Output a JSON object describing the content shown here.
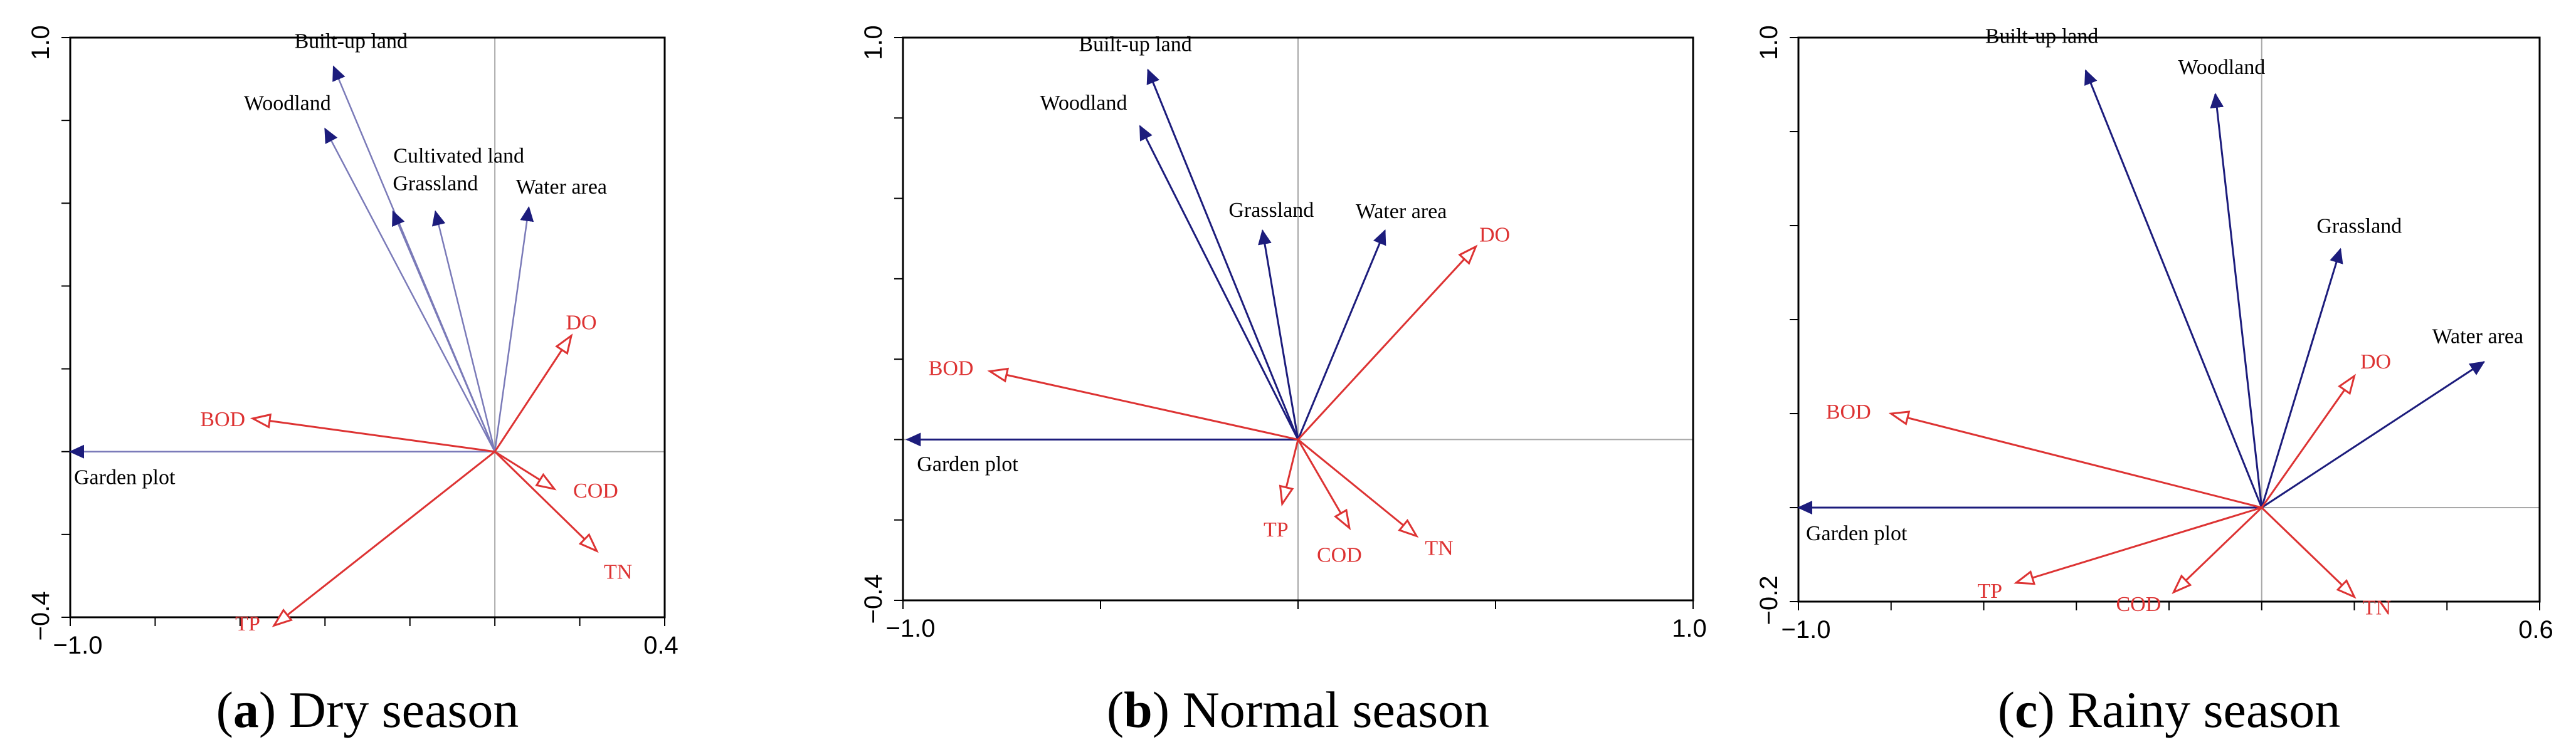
{
  "colors": {
    "landuse": "#1c1c7c",
    "landuse_light": "#7a7ab8",
    "water_quality": "#dd3333"
  },
  "chart_data": [
    {
      "type": "biplot",
      "panel": "a",
      "caption_letter": "a",
      "caption_text": "Dry season",
      "xlim": [
        -1.0,
        0.4
      ],
      "ylim": [
        -0.4,
        1.0
      ],
      "x_tick_labels": [
        "−1.0",
        "0.4"
      ],
      "y_tick_labels": [
        "−0.4",
        "1.0"
      ],
      "landuse_style": "light",
      "vectors": [
        {
          "name": "Built-up land",
          "group": "landuse",
          "x": -0.38,
          "y": 0.93
        },
        {
          "name": "Woodland",
          "group": "landuse",
          "x": -0.4,
          "y": 0.78
        },
        {
          "name": "Cultivated land",
          "group": "landuse",
          "x": -0.24,
          "y": 0.58
        },
        {
          "name": "Grassland",
          "group": "landuse",
          "x": -0.14,
          "y": 0.58
        },
        {
          "name": "Water area",
          "group": "landuse",
          "x": 0.08,
          "y": 0.59
        },
        {
          "name": "Garden plot",
          "group": "landuse",
          "x": -1.0,
          "y": 0.0
        },
        {
          "name": "DO",
          "group": "water_quality",
          "x": 0.18,
          "y": 0.28
        },
        {
          "name": "BOD",
          "group": "water_quality",
          "x": -0.57,
          "y": 0.08
        },
        {
          "name": "COD",
          "group": "water_quality",
          "x": 0.14,
          "y": -0.09
        },
        {
          "name": "TN",
          "group": "water_quality",
          "x": 0.24,
          "y": -0.24
        },
        {
          "name": "TP",
          "group": "water_quality",
          "x": -0.52,
          "y": -0.42
        }
      ]
    },
    {
      "type": "biplot",
      "panel": "b",
      "caption_letter": "b",
      "caption_text": "Normal season",
      "xlim": [
        -1.0,
        1.0
      ],
      "ylim": [
        -0.4,
        1.0
      ],
      "x_tick_labels": [
        "−1.0",
        "1.0"
      ],
      "y_tick_labels": [
        "−0.4",
        "1.0"
      ],
      "landuse_style": "dark",
      "vectors": [
        {
          "name": "Built-up land",
          "group": "landuse",
          "x": -0.38,
          "y": 0.92
        },
        {
          "name": "Woodland",
          "group": "landuse",
          "x": -0.4,
          "y": 0.78
        },
        {
          "name": "Grassland",
          "group": "landuse",
          "x": -0.09,
          "y": 0.52
        },
        {
          "name": "Water area",
          "group": "landuse",
          "x": 0.22,
          "y": 0.52
        },
        {
          "name": "Garden plot",
          "group": "landuse",
          "x": -0.99,
          "y": 0.0
        },
        {
          "name": "DO",
          "group": "water_quality",
          "x": 0.45,
          "y": 0.48
        },
        {
          "name": "BOD",
          "group": "water_quality",
          "x": -0.78,
          "y": 0.17
        },
        {
          "name": "COD",
          "group": "water_quality",
          "x": 0.13,
          "y": -0.22
        },
        {
          "name": "TN",
          "group": "water_quality",
          "x": 0.3,
          "y": -0.24
        },
        {
          "name": "TP",
          "group": "water_quality",
          "x": -0.04,
          "y": -0.16
        }
      ]
    },
    {
      "type": "biplot",
      "panel": "c",
      "caption_letter": "c",
      "caption_text": "Rainy season",
      "xlim": [
        -1.0,
        0.6
      ],
      "ylim": [
        -0.2,
        1.0
      ],
      "x_tick_labels": [
        "−1.0",
        "0.6"
      ],
      "y_tick_labels": [
        "−0.2",
        "1.0"
      ],
      "landuse_style": "dark",
      "vectors": [
        {
          "name": "Built-up land",
          "group": "landuse",
          "x": -0.38,
          "y": 0.93
        },
        {
          "name": "Woodland",
          "group": "landuse",
          "x": -0.1,
          "y": 0.88
        },
        {
          "name": "Grassland",
          "group": "landuse",
          "x": 0.17,
          "y": 0.55
        },
        {
          "name": "Water area",
          "group": "landuse",
          "x": 0.48,
          "y": 0.31
        },
        {
          "name": "Garden plot",
          "group": "landuse",
          "x": -1.0,
          "y": 0.0
        },
        {
          "name": "DO",
          "group": "water_quality",
          "x": 0.2,
          "y": 0.28
        },
        {
          "name": "BOD",
          "group": "water_quality",
          "x": -0.8,
          "y": 0.2
        },
        {
          "name": "COD",
          "group": "water_quality",
          "x": -0.19,
          "y": -0.18
        },
        {
          "name": "TN",
          "group": "water_quality",
          "x": 0.2,
          "y": -0.19
        },
        {
          "name": "TP",
          "group": "water_quality",
          "x": -0.53,
          "y": -0.16
        }
      ]
    }
  ]
}
